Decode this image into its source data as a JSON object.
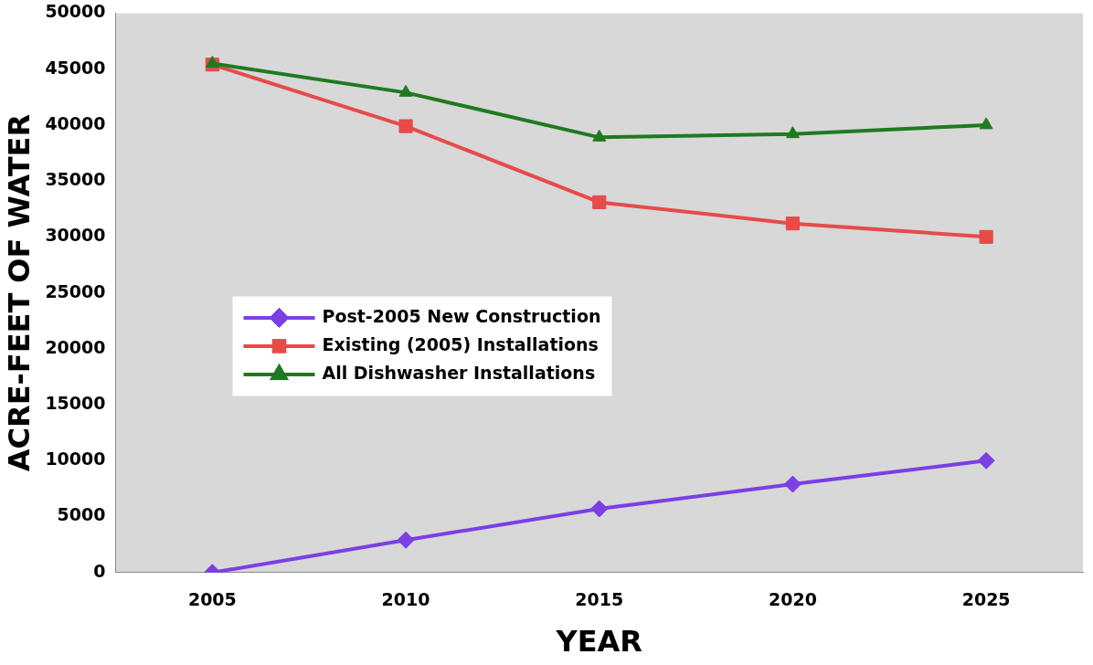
{
  "chart_data": {
    "type": "line",
    "xlabel": "YEAR",
    "ylabel": "ACRE-FEET OF WATER",
    "categories": [
      "2005",
      "2010",
      "2015",
      "2020",
      "2025"
    ],
    "ylim": [
      0,
      50000
    ],
    "yticks": [
      0,
      5000,
      10000,
      15000,
      20000,
      25000,
      30000,
      35000,
      40000,
      45000,
      50000
    ],
    "grid": false,
    "legend": "left",
    "line_style": "solid",
    "series": [
      {
        "name": "Post-2005 New Construction",
        "color": "#7b3fe4",
        "marker": "diamond",
        "values": [
          0,
          2900,
          5700,
          7900,
          10000
        ]
      },
      {
        "name": "Existing (2005) Installations",
        "color": "#e84a4a",
        "marker": "square",
        "values": [
          45400,
          39900,
          33100,
          31200,
          30000
        ]
      },
      {
        "name": "All Dishwasher Installations",
        "color": "#1f7a1f",
        "marker": "triangle",
        "values": [
          45500,
          42900,
          38900,
          39200,
          40000
        ]
      }
    ]
  }
}
